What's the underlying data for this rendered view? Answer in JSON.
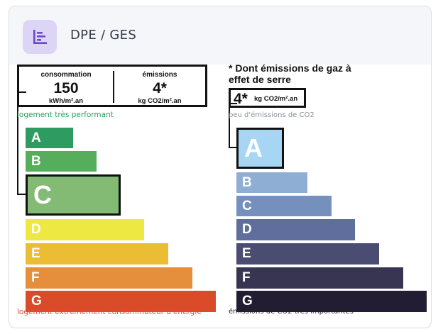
{
  "header": {
    "title": "DPE / GES",
    "icon": "bar-chart-icon",
    "icon_color": "#6b47cf"
  },
  "dpe": {
    "summary": {
      "consumption_label": "consommation",
      "consumption_value": "150",
      "consumption_unit": "kWh/m².an",
      "emissions_label": "émissions",
      "emissions_value": "4*",
      "emissions_unit": "kg CO2/m².an"
    },
    "top_caption": "logement très performant",
    "bottom_caption": "logement extrêmement consommateur d'énergie",
    "active_class": "C",
    "classes": [
      {
        "letter": "A",
        "color": "#2e9b61"
      },
      {
        "letter": "B",
        "color": "#56ad5c"
      },
      {
        "letter": "C",
        "color": "#83bb74"
      },
      {
        "letter": "D",
        "color": "#eee842"
      },
      {
        "letter": "E",
        "color": "#ebbd35"
      },
      {
        "letter": "F",
        "color": "#e58f3c"
      },
      {
        "letter": "G",
        "color": "#da4b2a"
      }
    ]
  },
  "ges": {
    "title": "* Dont émissions de gaz à effet de serre",
    "value": "4*",
    "unit": "kg CO2/m².an",
    "top_caption": "peu d'émissions de CO2",
    "bottom_caption": "émissions de CO2 très importantes",
    "active_class": "A",
    "classes": [
      {
        "letter": "A",
        "color": "#a6d6f4"
      },
      {
        "letter": "B",
        "color": "#8eaed4"
      },
      {
        "letter": "C",
        "color": "#7590bd"
      },
      {
        "letter": "D",
        "color": "#5f6e9d"
      },
      {
        "letter": "E",
        "color": "#4a4c72"
      },
      {
        "letter": "F",
        "color": "#373552"
      },
      {
        "letter": "G",
        "color": "#221d33"
      }
    ]
  }
}
